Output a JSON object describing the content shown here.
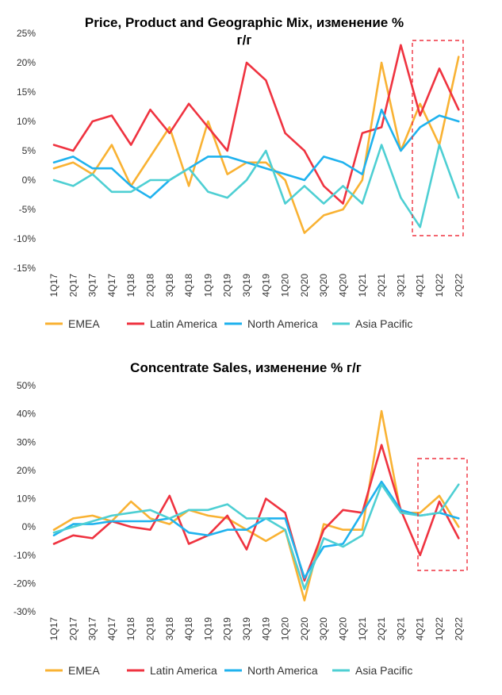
{
  "colors": {
    "EMEA": "#f9b233",
    "Latin America": "#ef3340",
    "North America": "#1fb2ee",
    "Asia Pacific": "#4ecfd3",
    "highlight": "#ef3340"
  },
  "chart_data": [
    {
      "type": "line",
      "title_line1": "Price, Product and Geographic Mix, изменение %",
      "title_line2": "г/г",
      "ylim": [
        -15,
        25
      ],
      "yticks": [
        "25%",
        "20%",
        "15%",
        "10%",
        "5%",
        "0%",
        "-5%",
        "-10%",
        "-15%"
      ],
      "ytick_values": [
        25,
        20,
        15,
        10,
        5,
        0,
        -5,
        -10,
        -15
      ],
      "categories": [
        "1Q17",
        "2Q17",
        "3Q17",
        "4Q17",
        "1Q18",
        "2Q18",
        "3Q18",
        "4Q18",
        "1Q19",
        "2Q19",
        "3Q19",
        "4Q19",
        "1Q20",
        "2Q20",
        "3Q20",
        "4Q20",
        "1Q21",
        "2Q21",
        "3Q21",
        "4Q21",
        "1Q22",
        "2Q22"
      ],
      "series": [
        {
          "name": "EMEA",
          "values": [
            2,
            3,
            1,
            6,
            -1,
            4,
            9,
            -1,
            10,
            1,
            3,
            3,
            0,
            -9,
            -6,
            -5,
            0,
            20,
            5,
            13,
            6,
            21
          ]
        },
        {
          "name": "Latin America",
          "values": [
            6,
            5,
            10,
            11,
            6,
            12,
            8,
            13,
            9,
            5,
            20,
            17,
            8,
            5,
            -1,
            -4,
            8,
            9,
            23,
            11,
            19,
            12
          ]
        },
        {
          "name": "North America",
          "values": [
            3,
            4,
            2,
            2,
            -1,
            -3,
            0,
            2,
            4,
            4,
            3,
            2,
            1,
            0,
            4,
            3,
            1,
            12,
            5,
            9,
            11,
            10
          ]
        },
        {
          "name": "Asia Pacific",
          "values": [
            0,
            -1,
            1,
            -2,
            -2,
            0,
            0,
            2,
            -2,
            -3,
            0,
            5,
            -4,
            -1,
            -4,
            -1,
            -4,
            6,
            -3,
            -8,
            6,
            -3
          ]
        }
      ],
      "highlight_range": [
        "4Q21",
        "2Q22"
      ],
      "legend": [
        "EMEA",
        "Latin America",
        "North America",
        "Asia Pacific"
      ]
    },
    {
      "type": "line",
      "title_line1": "Concentrate Sales, изменение % г/г",
      "title_line2": "",
      "ylim": [
        -30,
        50
      ],
      "yticks": [
        "50%",
        "40%",
        "30%",
        "20%",
        "10%",
        "0%",
        "-10%",
        "-20%",
        "-30%"
      ],
      "ytick_values": [
        50,
        40,
        30,
        20,
        10,
        0,
        -10,
        -20,
        -30
      ],
      "categories": [
        "1Q17",
        "2Q17",
        "3Q17",
        "4Q17",
        "1Q18",
        "2Q18",
        "3Q18",
        "4Q18",
        "1Q19",
        "2Q19",
        "3Q19",
        "4Q19",
        "1Q20",
        "2Q20",
        "3Q20",
        "4Q20",
        "1Q21",
        "2Q21",
        "3Q21",
        "4Q21",
        "1Q22",
        "2Q22"
      ],
      "series": [
        {
          "name": "EMEA",
          "values": [
            -1,
            3,
            4,
            2,
            9,
            3,
            1,
            6,
            4,
            3,
            -1,
            -5,
            -1,
            -26,
            1,
            -1,
            -1,
            41,
            5,
            5,
            11,
            0
          ]
        },
        {
          "name": "Latin America",
          "values": [
            -6,
            -3,
            -4,
            2,
            0,
            -1,
            11,
            -6,
            -3,
            4,
            -8,
            10,
            5,
            -19,
            -1,
            6,
            5,
            29,
            6,
            -10,
            9,
            -4
          ]
        },
        {
          "name": "North America",
          "values": [
            -3,
            1,
            1,
            2,
            2,
            2,
            3,
            -2,
            -3,
            -1,
            -1,
            3,
            3,
            -18,
            -7,
            -6,
            5,
            16,
            6,
            4,
            5,
            3
          ]
        },
        {
          "name": "Asia Pacific",
          "values": [
            -2,
            0,
            2,
            4,
            5,
            6,
            3,
            6,
            6,
            8,
            3,
            3,
            -1,
            -22,
            -4,
            -7,
            -3,
            15,
            5,
            4,
            5,
            15
          ]
        }
      ],
      "highlight_range": [
        "4Q21",
        "2Q22"
      ],
      "legend": [
        "EMEA",
        "Latin America",
        "North America",
        "Asia Pacific"
      ]
    }
  ]
}
